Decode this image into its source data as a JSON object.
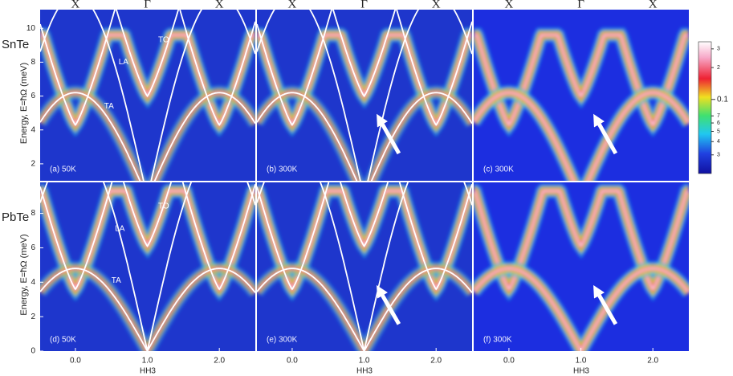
{
  "chart_data": [
    {
      "type": "heatmap",
      "panel_label": "(a) 50K",
      "row_label": "SnTe",
      "ylabel": "Energy, E=ħΩ (meV)",
      "top_labels": [
        "X",
        "Γ",
        "X"
      ],
      "annotations": [
        "TO",
        "LA",
        "TA"
      ],
      "xlim": [
        -0.49,
        2.5
      ],
      "ylim": [
        1,
        11.1
      ],
      "yticks": [
        2,
        4,
        6,
        8,
        10
      ]
    },
    {
      "type": "heatmap",
      "panel_label": "(b) 300K",
      "top_labels": [
        "X",
        "Γ",
        "X"
      ],
      "xlim": [
        -0.49,
        2.5
      ],
      "ylim": [
        1,
        11.1
      ]
    },
    {
      "type": "heatmap",
      "panel_label": "(c) 300K",
      "top_labels": [
        "X",
        "Γ",
        "X"
      ],
      "xlim": [
        -0.49,
        2.5
      ],
      "ylim": [
        1,
        11.1
      ],
      "colorbar": {
        "log": true,
        "lim": [
          0.02,
          0.35
        ],
        "ticks": [
          {
            "value": 0.3,
            "label": "3"
          },
          {
            "value": 0.2,
            "label": "2"
          },
          0.1,
          {
            "value": 0.07,
            "label": "7"
          },
          {
            "value": 0.06,
            "label": "6"
          },
          {
            "value": 0.05,
            "label": "5"
          },
          {
            "value": 0.04,
            "label": "4"
          },
          {
            "value": 0.03,
            "label": "3"
          }
        ]
      }
    },
    {
      "type": "heatmap",
      "panel_label": "(d) 50K",
      "row_label": "PbTe",
      "ylabel": "Energy, E=ħΩ (meV)",
      "xlabel": "HH3",
      "annotations": [
        "TO",
        "LA",
        "TA"
      ],
      "xlim": [
        -0.49,
        2.5
      ],
      "ylim": [
        0,
        9.8
      ],
      "yticks": [
        0,
        2,
        4,
        6,
        8
      ],
      "xticks": [
        {
          "value": 0,
          "label": "0.0"
        },
        {
          "value": 1,
          "label": "1.0"
        },
        {
          "value": 2,
          "label": "2.0"
        }
      ]
    },
    {
      "type": "heatmap",
      "panel_label": "(e) 300K",
      "xlabel": "HH3",
      "xlim": [
        -0.49,
        2.5
      ],
      "ylim": [
        0,
        9.8
      ],
      "xticks": [
        {
          "value": 0,
          "label": "0.0"
        },
        {
          "value": 1,
          "label": "1.0"
        },
        {
          "value": 2,
          "label": "2.0"
        }
      ]
    },
    {
      "type": "heatmap",
      "panel_label": "(f) 300K",
      "xlabel": "HH3",
      "xlim": [
        -0.49,
        2.5
      ],
      "ylim": [
        0,
        9.8
      ],
      "xticks": [
        {
          "value": 0,
          "label": "0.0"
        },
        {
          "value": 1,
          "label": "1.0"
        },
        {
          "value": 2,
          "label": "2.0"
        }
      ]
    }
  ]
}
